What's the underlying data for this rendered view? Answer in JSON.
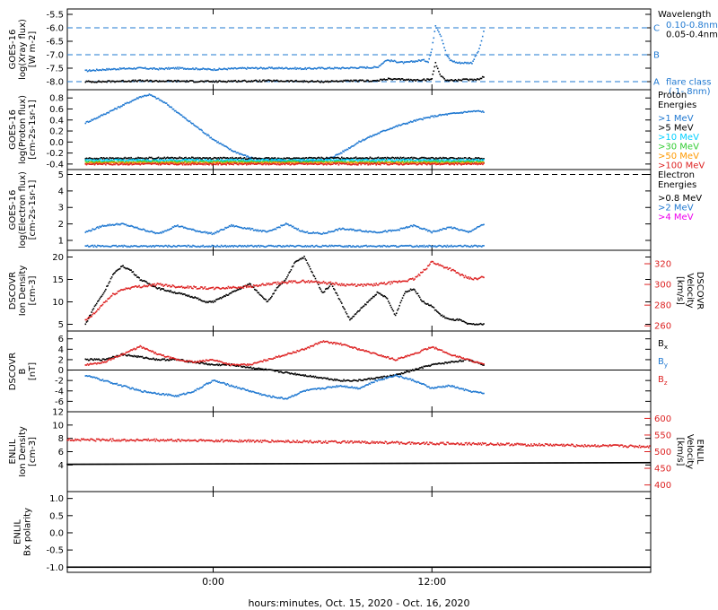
{
  "chart_data": [
    {
      "type": "scatter",
      "ylabel": "GOES-16\nlog(Xray flux)\n[W m-2]",
      "ylim": [
        -8.3,
        -5.3
      ],
      "yticks": [
        "-5.5",
        "-6.0",
        "-6.5",
        "-7.0",
        "-7.5",
        "-8.0"
      ],
      "ytick_values": [
        -5.5,
        -6.0,
        -6.5,
        -7.0,
        -7.5,
        -8.0
      ],
      "legend_title": "Wavelength",
      "legend": [
        {
          "label": "0.10-0.8nm",
          "color": "#1f78d1"
        },
        {
          "label": "0.05-0.4nm",
          "color": "#000000"
        }
      ],
      "annotations": [
        {
          "letter": "C",
          "y": -6.0,
          "color": "#1f78d1"
        },
        {
          "letter": "B",
          "y": -7.0,
          "color": "#1f78d1"
        },
        {
          "letter": "A",
          "y": -8.0,
          "color": "#1f78d1",
          "text": "flare class",
          "text2": "(.1-.8nm)"
        }
      ],
      "hlines": [
        -6.0,
        -7.0,
        -8.0
      ],
      "series": [
        {
          "name": "0.10-0.8nm",
          "color": "#1f78d1",
          "x": [
            -7,
            -6,
            -5,
            -4,
            -3,
            -2,
            -1,
            0,
            1,
            2,
            3,
            4,
            5,
            6,
            7,
            8,
            9,
            9.5,
            10,
            10.5,
            11,
            11.5,
            11.8,
            12,
            12.2,
            12.5,
            12.8,
            13,
            13.4,
            13.8,
            14.2,
            14.6,
            14.9
          ],
          "y": [
            -7.6,
            -7.55,
            -7.52,
            -7.5,
            -7.53,
            -7.5,
            -7.52,
            -7.55,
            -7.52,
            -7.5,
            -7.5,
            -7.5,
            -7.52,
            -7.5,
            -7.5,
            -7.48,
            -7.47,
            -7.2,
            -7.25,
            -7.3,
            -7.25,
            -7.2,
            -7.25,
            -6.8,
            -5.9,
            -6.3,
            -7.0,
            -7.2,
            -7.3,
            -7.3,
            -7.3,
            -6.8,
            -6.0
          ]
        },
        {
          "name": "0.05-0.4nm",
          "color": "#000000",
          "x": [
            -7,
            -6,
            -5,
            -4,
            -3,
            -2,
            -1,
            0,
            1,
            2,
            3,
            4,
            5,
            6,
            7,
            8,
            9,
            9.5,
            10,
            10.5,
            11,
            11.5,
            11.8,
            12,
            12.2,
            12.5,
            12.8,
            13,
            13.4,
            13.8,
            14.2,
            14.6,
            14.9
          ],
          "y": [
            -8.0,
            -8.0,
            -7.98,
            -7.97,
            -7.98,
            -7.98,
            -7.99,
            -8.0,
            -7.98,
            -7.98,
            -7.97,
            -7.98,
            -7.99,
            -8.0,
            -7.98,
            -7.97,
            -7.97,
            -7.9,
            -7.92,
            -7.92,
            -7.95,
            -7.93,
            -7.93,
            -7.9,
            -7.3,
            -7.8,
            -7.95,
            -7.95,
            -7.95,
            -7.93,
            -7.93,
            -7.9,
            -7.8
          ]
        }
      ]
    },
    {
      "type": "scatter",
      "ylabel": "GOES-16\nlog(Proton flux)\n[cm-2s-1sr-1]",
      "ylim": [
        -0.5,
        0.95
      ],
      "yticks": [
        "0.8",
        "0.6",
        "0.4",
        "0.2",
        "0.0",
        "-0.2",
        "-0.4"
      ],
      "ytick_values": [
        0.8,
        0.6,
        0.4,
        0.2,
        0.0,
        -0.2,
        -0.4
      ],
      "legend_title": "Proton\nEnergies",
      "legend": [
        {
          "label": ">1 MeV",
          "color": "#1f78d1"
        },
        {
          "label": ">5 MeV",
          "color": "#000000"
        },
        {
          "label": ">10 MeV",
          "color": "#00d0ff"
        },
        {
          "label": ">30 MeV",
          "color": "#33cc33"
        },
        {
          "label": ">50 MeV",
          "color": "#ff9900"
        },
        {
          "label": ">100 MeV",
          "color": "#dd2222"
        }
      ],
      "series": [
        {
          "name": ">1 MeV",
          "color": "#1f78d1",
          "x": [
            -7,
            -6.5,
            -6,
            -5.5,
            -5,
            -4.5,
            -4,
            -3.5,
            -3,
            -2.5,
            -2,
            -1.5,
            -1,
            0,
            1,
            2,
            3,
            4,
            5,
            6,
            6.5,
            7,
            7.5,
            8,
            8.5,
            9,
            9.5,
            10,
            10.5,
            11,
            11.5,
            12,
            12.5,
            13,
            13.5,
            14,
            14.5,
            14.9
          ],
          "y": [
            0.35,
            0.42,
            0.5,
            0.58,
            0.66,
            0.74,
            0.82,
            0.86,
            0.78,
            0.68,
            0.55,
            0.42,
            0.3,
            0.05,
            -0.15,
            -0.28,
            -0.33,
            -0.35,
            -0.35,
            -0.33,
            -0.28,
            -0.2,
            -0.1,
            0.0,
            0.08,
            0.15,
            0.22,
            0.28,
            0.33,
            0.38,
            0.42,
            0.46,
            0.49,
            0.51,
            0.53,
            0.55,
            0.56,
            0.55
          ]
        },
        {
          "name": ">5 MeV",
          "color": "#000000",
          "x": [
            -7,
            -2,
            3,
            8,
            14.9
          ],
          "y": [
            -0.3,
            -0.29,
            -0.3,
            -0.29,
            -0.3
          ]
        },
        {
          "name": ">10 MeV",
          "color": "#00d0ff",
          "x": [
            -7,
            -2,
            3,
            8,
            14.9
          ],
          "y": [
            -0.33,
            -0.33,
            -0.33,
            -0.33,
            -0.33
          ]
        },
        {
          "name": ">30 MeV",
          "color": "#33cc33",
          "x": [
            -7,
            -2,
            3,
            8,
            14.9
          ],
          "y": [
            -0.36,
            -0.36,
            -0.36,
            -0.36,
            -0.36
          ]
        },
        {
          "name": ">50 MeV",
          "color": "#ff9900",
          "x": [
            -7,
            -2,
            3,
            8,
            14.9
          ],
          "y": [
            -0.38,
            -0.38,
            -0.38,
            -0.38,
            -0.38
          ]
        },
        {
          "name": ">100 MeV",
          "color": "#dd2222",
          "x": [
            -7,
            -2,
            3,
            8,
            14.9
          ],
          "y": [
            -0.4,
            -0.4,
            -0.4,
            -0.4,
            -0.4
          ]
        }
      ]
    },
    {
      "type": "scatter",
      "ylabel": "GOES-16\nlog(Electron flux)\n[cm-2s-1sr-1]",
      "ylim": [
        0.4,
        5.3
      ],
      "yticks": [
        "5",
        "4",
        "3",
        "2",
        "1"
      ],
      "ytick_values": [
        5,
        4,
        3,
        2,
        1
      ],
      "legend_title": "Electron\nEnergies",
      "legend": [
        {
          "label": ">0.8 MeV",
          "color": "#000000"
        },
        {
          "label": ">2 MeV",
          "color": "#1f78d1"
        },
        {
          "label": ">4 MeV",
          "color": "#ee00ee"
        }
      ],
      "hlines": [
        5.0
      ],
      "series": [
        {
          "name": ">2 MeV",
          "color": "#1f78d1",
          "x": [
            -7,
            -6,
            -5,
            -4,
            -3,
            -2,
            -1,
            0,
            1,
            2,
            3,
            4,
            5,
            6,
            7,
            8,
            9,
            10,
            11,
            12,
            13,
            14,
            14.9
          ],
          "y": [
            1.5,
            1.9,
            2.0,
            1.7,
            1.4,
            1.9,
            1.6,
            1.4,
            1.9,
            1.7,
            1.5,
            2.0,
            1.5,
            1.4,
            1.7,
            1.6,
            1.5,
            1.6,
            1.9,
            1.5,
            1.8,
            1.5,
            2.0
          ]
        },
        {
          "name": ">2 MeV baseline",
          "color": "#1f78d1",
          "x": [
            -7,
            14.9
          ],
          "y": [
            0.65,
            0.65
          ]
        }
      ]
    },
    {
      "type": "scatter",
      "ylabel": "DSCOVR\nIon Density\n[cm-3]",
      "ylim": [
        3.5,
        21.5
      ],
      "yticks": [
        "20",
        "15",
        "10",
        "5"
      ],
      "ytick_values": [
        20,
        15,
        10,
        5
      ],
      "ylabel2": "DSCOVR\nVelocity\n[km/s]",
      "ylim2": [
        255,
        333
      ],
      "yticks2": [
        "320",
        "300",
        "280",
        "260"
      ],
      "ytick_values2": [
        320,
        300,
        280,
        260
      ],
      "series": [
        {
          "name": "Ion Density",
          "color": "#000000",
          "axis": "left",
          "x": [
            -7,
            -6.5,
            -6,
            -5.5,
            -5,
            -4.5,
            -4,
            -3.5,
            -3,
            -2,
            -1,
            -0.5,
            0,
            0.5,
            1,
            1.5,
            2,
            2.5,
            3,
            3.5,
            4,
            4.5,
            5,
            5.5,
            6,
            6.5,
            7,
            7.5,
            8,
            8.5,
            9,
            9.5,
            10,
            10.5,
            11,
            11.5,
            12,
            12.5,
            13,
            13.5,
            14,
            14.5,
            14.9
          ],
          "y": [
            5,
            9,
            12,
            16,
            18,
            17,
            15,
            14,
            13,
            12,
            11,
            10,
            10,
            11,
            12,
            13,
            14,
            12,
            10,
            13,
            15,
            19,
            20,
            16,
            12,
            14,
            10,
            6,
            8,
            10,
            12,
            11,
            7,
            12,
            13,
            10,
            9,
            7,
            6,
            6,
            5,
            5,
            5
          ]
        },
        {
          "name": "Velocity",
          "color": "#dd2222",
          "axis": "right",
          "x": [
            -7,
            -6.5,
            -6,
            -5.5,
            -5,
            -4.5,
            -4,
            -3.5,
            -3,
            -2,
            -1,
            0,
            1,
            2,
            3,
            4,
            5,
            6,
            7,
            8,
            9,
            10,
            11,
            11.5,
            12,
            12.5,
            13,
            13.5,
            14,
            14.5,
            14.9
          ],
          "y": [
            265,
            272,
            282,
            290,
            295,
            297,
            298,
            299,
            300,
            298,
            297,
            296,
            297,
            298,
            300,
            302,
            303,
            302,
            300,
            299,
            300,
            302,
            305,
            312,
            322,
            318,
            315,
            310,
            306,
            305,
            308
          ]
        }
      ]
    },
    {
      "type": "scatter",
      "ylabel": "DSCOVR\nB\n[nT]",
      "ylim": [
        -8,
        7.5
      ],
      "yticks": [
        "6",
        "4",
        "2",
        "0",
        "-2",
        "-4",
        "-6"
      ],
      "ytick_values": [
        6,
        4,
        2,
        0,
        -2,
        -4,
        -6
      ],
      "hlines": [
        0
      ],
      "legend": [
        {
          "label": "B",
          "sub": "x",
          "color": "#000000"
        },
        {
          "label": "B",
          "sub": "y",
          "color": "#1f78d1"
        },
        {
          "label": "B",
          "sub": "z",
          "color": "#dd2222"
        }
      ],
      "series": [
        {
          "name": "Bx",
          "color": "#000000",
          "x": [
            -7,
            -6,
            -5,
            -4,
            -3,
            -2,
            -1,
            0,
            1,
            2,
            3,
            4,
            5,
            6,
            7,
            8,
            9,
            10,
            11,
            12,
            13,
            14,
            14.9
          ],
          "y": [
            2,
            2,
            3,
            2.5,
            2,
            2,
            1.5,
            1,
            1,
            0.5,
            0,
            -0.5,
            -1,
            -1.5,
            -2,
            -2,
            -1.5,
            -1,
            0,
            1,
            1.5,
            2,
            1
          ]
        },
        {
          "name": "By",
          "color": "#1f78d1",
          "x": [
            -7,
            -6,
            -5,
            -4,
            -3,
            -2,
            -1,
            0,
            1,
            2,
            3,
            4,
            5,
            6,
            7,
            8,
            9,
            10,
            11,
            12,
            13,
            14,
            14.9
          ],
          "y": [
            -1,
            -2,
            -3,
            -4,
            -4.5,
            -5,
            -4,
            -2,
            -3,
            -4,
            -5,
            -5.5,
            -4,
            -3.5,
            -3,
            -3.5,
            -2,
            -1,
            -2,
            -3.5,
            -3,
            -4,
            -4.5
          ]
        },
        {
          "name": "Bz",
          "color": "#dd2222",
          "x": [
            -7,
            -6,
            -5,
            -4,
            -3,
            -2,
            -1,
            0,
            1,
            2,
            3,
            4,
            5,
            6,
            7,
            8,
            9,
            10,
            11,
            12,
            13,
            14,
            14.9
          ],
          "y": [
            1,
            1.5,
            3,
            4.5,
            3,
            2,
            1.5,
            2,
            1,
            1,
            2,
            3,
            4,
            5.5,
            5,
            4,
            3,
            2,
            3,
            4.5,
            3,
            2,
            1
          ]
        }
      ]
    },
    {
      "type": "scatter",
      "ylabel": "ENLIL\nIon Density\n[cm-3]",
      "ylim": [
        0,
        12
      ],
      "yticks": [
        "12",
        "10",
        "8",
        "6",
        "4"
      ],
      "ytick_values": [
        12,
        10,
        8,
        6,
        4
      ],
      "ylabel2": "ENLIL\nVelocity\n[km/s]",
      "ylim2": [
        380,
        620
      ],
      "yticks2": [
        "600",
        "550",
        "500",
        "450",
        "400"
      ],
      "ytick_values2": [
        600,
        550,
        500,
        450,
        400
      ],
      "series": [
        {
          "name": "Ion Density",
          "color": "#000000",
          "axis": "left",
          "x": [
            -8,
            24
          ],
          "y": [
            4.1,
            4.35
          ]
        },
        {
          "name": "Velocity",
          "color": "#dd2222",
          "axis": "right",
          "x": [
            -8,
            0,
            8,
            16,
            24
          ],
          "y": [
            536,
            533,
            528,
            522,
            515
          ]
        }
      ]
    },
    {
      "type": "scatter",
      "ylabel": "ENLIL\nBx polarity",
      "ylim": [
        -1.15,
        1.2
      ],
      "yticks": [
        "1.0",
        "0.5",
        "0.0",
        "-0.5",
        "-1.0"
      ],
      "ytick_values": [
        1.0,
        0.5,
        0.0,
        -0.5,
        -1.0
      ],
      "series": [
        {
          "name": "Bx polarity",
          "color": "#000000",
          "x": [
            -8,
            24
          ],
          "y": [
            -1.0,
            -1.0
          ]
        }
      ]
    }
  ],
  "x_axis": {
    "range": [
      -8,
      24
    ],
    "tick_labels": [
      "0:00",
      "12:00"
    ],
    "tick_values": [
      0,
      12
    ],
    "xlabel": "hours:minutes, Oct. 15, 2020 - Oct. 16, 2020"
  }
}
